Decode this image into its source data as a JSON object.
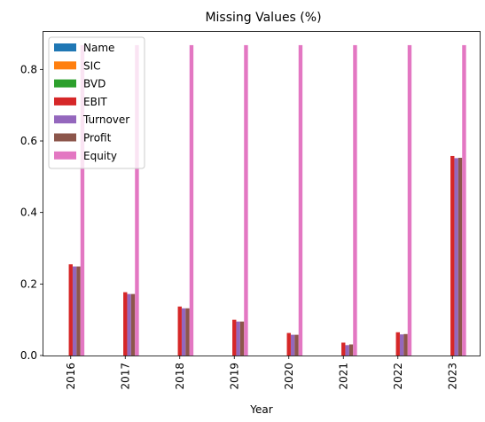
{
  "chart_data": {
    "type": "bar",
    "title": "Missing Values (%)",
    "xlabel": "Year",
    "ylabel": "",
    "categories": [
      "2016",
      "2017",
      "2018",
      "2019",
      "2020",
      "2021",
      "2022",
      "2023"
    ],
    "ylim": [
      0,
      0.905
    ],
    "yticks": [
      0.0,
      0.2,
      0.4,
      0.6,
      0.8
    ],
    "ytick_labels": [
      "0.0",
      "0.2",
      "0.4",
      "0.6",
      "0.8"
    ],
    "legend_position": "upper-left",
    "series": [
      {
        "name": "Name",
        "color": "#1f77b4",
        "values": [
          0,
          0,
          0,
          0,
          0,
          0,
          0,
          0
        ]
      },
      {
        "name": "SIC",
        "color": "#ff7f0e",
        "values": [
          0,
          0,
          0,
          0,
          0,
          0,
          0,
          0
        ]
      },
      {
        "name": "BVD",
        "color": "#2ca02c",
        "values": [
          0,
          0,
          0,
          0,
          0,
          0,
          0,
          0
        ]
      },
      {
        "name": "EBIT",
        "color": "#d62728",
        "values": [
          0.255,
          0.177,
          0.137,
          0.1,
          0.063,
          0.036,
          0.065,
          0.558
        ]
      },
      {
        "name": "Turnover",
        "color": "#9467bd",
        "values": [
          0.249,
          0.172,
          0.132,
          0.095,
          0.058,
          0.029,
          0.059,
          0.552
        ]
      },
      {
        "name": "Profit",
        "color": "#8c564b",
        "values": [
          0.249,
          0.172,
          0.132,
          0.095,
          0.058,
          0.031,
          0.06,
          0.553
        ]
      },
      {
        "name": "Equity",
        "color": "#e377c2",
        "values": [
          0.868,
          0.868,
          0.868,
          0.868,
          0.868,
          0.868,
          0.868,
          0.868
        ]
      }
    ]
  }
}
